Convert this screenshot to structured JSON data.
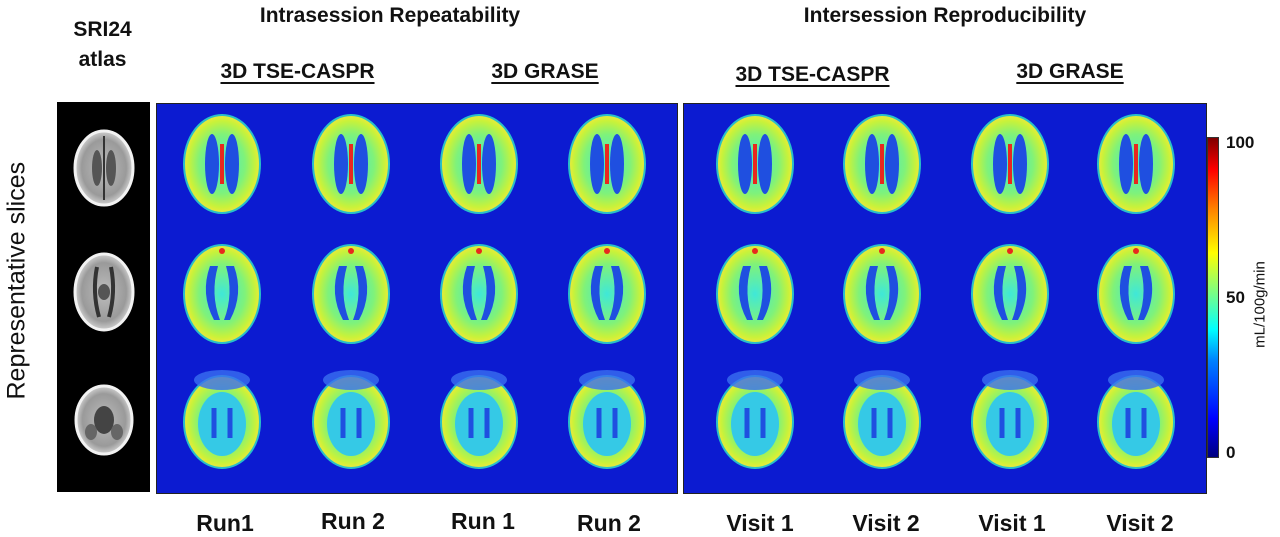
{
  "atlas": {
    "title_line1": "SRI24",
    "title_line2": "atlas"
  },
  "side_label": "Representative slices",
  "groups": {
    "left": "Intrasession Repeatability",
    "right": "Intersession Reproducibility"
  },
  "methods": [
    "3D TSE-CASPR",
    "3D GRASE",
    "3D TSE-CASPR",
    "3D GRASE"
  ],
  "column_labels": [
    "Run1",
    "Run 2",
    "Run 1",
    "Run 2",
    "Visit 1",
    "Visit 2",
    "Visit 1",
    "Visit 2"
  ],
  "colorbar": {
    "max": "100",
    "mid": "50",
    "min": "0",
    "unit": "mL/100g/min"
  },
  "colors": {
    "background_blue": "#0c1bd1",
    "atlas_bg": "#000000"
  }
}
